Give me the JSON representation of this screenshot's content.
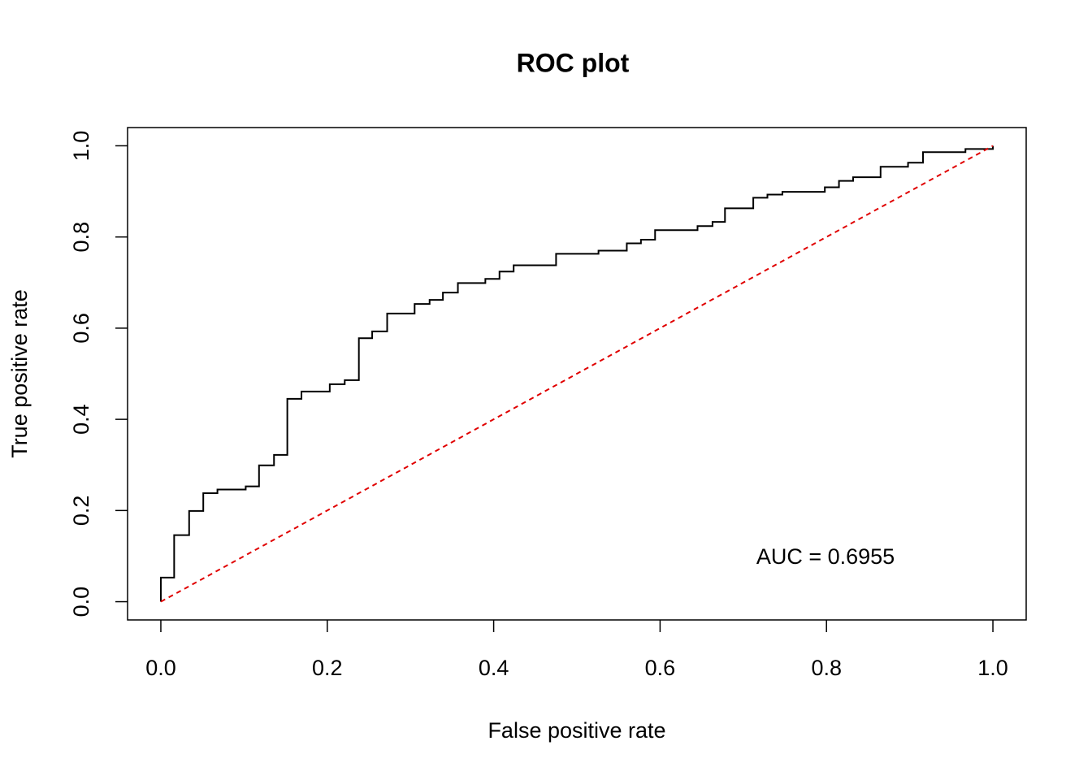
{
  "chart_data": {
    "type": "line",
    "title": "ROC plot",
    "xlabel": "False positive rate",
    "ylabel": "True positive rate",
    "annotation": "AUC = 0.6955",
    "xlim": [
      -0.04,
      1.04
    ],
    "ylim": [
      -0.04,
      1.04
    ],
    "xticks": [
      {
        "value": 0,
        "label": "0.0"
      },
      0.2,
      0.4,
      0.6,
      0.8,
      {
        "value": 1,
        "label": "1.0"
      }
    ],
    "yticks": [
      {
        "value": 0,
        "label": "0.0"
      },
      0.2,
      0.4,
      0.6,
      0.8,
      {
        "value": 1,
        "label": "1.0"
      }
    ],
    "grid": false,
    "series": [
      {
        "color": "#000000",
        "dash": false,
        "x": [
          0,
          0,
          0.016,
          0.016,
          0.034,
          0.034,
          0.051,
          0.051,
          0.068,
          0.068,
          0.102,
          0.102,
          0.118,
          0.118,
          0.136,
          0.136,
          0.152,
          0.152,
          0.169,
          0.169,
          0.203,
          0.203,
          0.221,
          0.221,
          0.238,
          0.238,
          0.254,
          0.254,
          0.272,
          0.272,
          0.305,
          0.305,
          0.323,
          0.323,
          0.339,
          0.339,
          0.357,
          0.357,
          0.39,
          0.39,
          0.407,
          0.407,
          0.424,
          0.424,
          0.475,
          0.475,
          0.526,
          0.526,
          0.56,
          0.56,
          0.577,
          0.577,
          0.594,
          0.594,
          0.645,
          0.645,
          0.663,
          0.663,
          0.678,
          0.678,
          0.712,
          0.712,
          0.729,
          0.729,
          0.747,
          0.747,
          0.798,
          0.798,
          0.815,
          0.815,
          0.832,
          0.832,
          0.865,
          0.865,
          0.898,
          0.898,
          0.916,
          0.916,
          0.967,
          0.967,
          1,
          1
        ],
        "values": [
          0,
          0.053,
          0.053,
          0.146,
          0.146,
          0.199,
          0.199,
          0.238,
          0.238,
          0.246,
          0.246,
          0.253,
          0.253,
          0.299,
          0.299,
          0.322,
          0.322,
          0.445,
          0.445,
          0.461,
          0.461,
          0.477,
          0.477,
          0.486,
          0.486,
          0.578,
          0.578,
          0.593,
          0.593,
          0.632,
          0.632,
          0.653,
          0.653,
          0.662,
          0.662,
          0.678,
          0.678,
          0.699,
          0.699,
          0.708,
          0.708,
          0.724,
          0.724,
          0.738,
          0.738,
          0.763,
          0.763,
          0.77,
          0.77,
          0.786,
          0.786,
          0.794,
          0.794,
          0.815,
          0.815,
          0.824,
          0.824,
          0.833,
          0.833,
          0.863,
          0.863,
          0.886,
          0.886,
          0.893,
          0.893,
          0.899,
          0.899,
          0.909,
          0.909,
          0.923,
          0.923,
          0.931,
          0.931,
          0.954,
          0.954,
          0.963,
          0.963,
          0.986,
          0.986,
          0.993,
          0.993,
          1
        ]
      },
      {
        "color": "#e00000",
        "dash": true,
        "x": [
          0,
          1
        ],
        "values": [
          0,
          1
        ]
      }
    ]
  }
}
